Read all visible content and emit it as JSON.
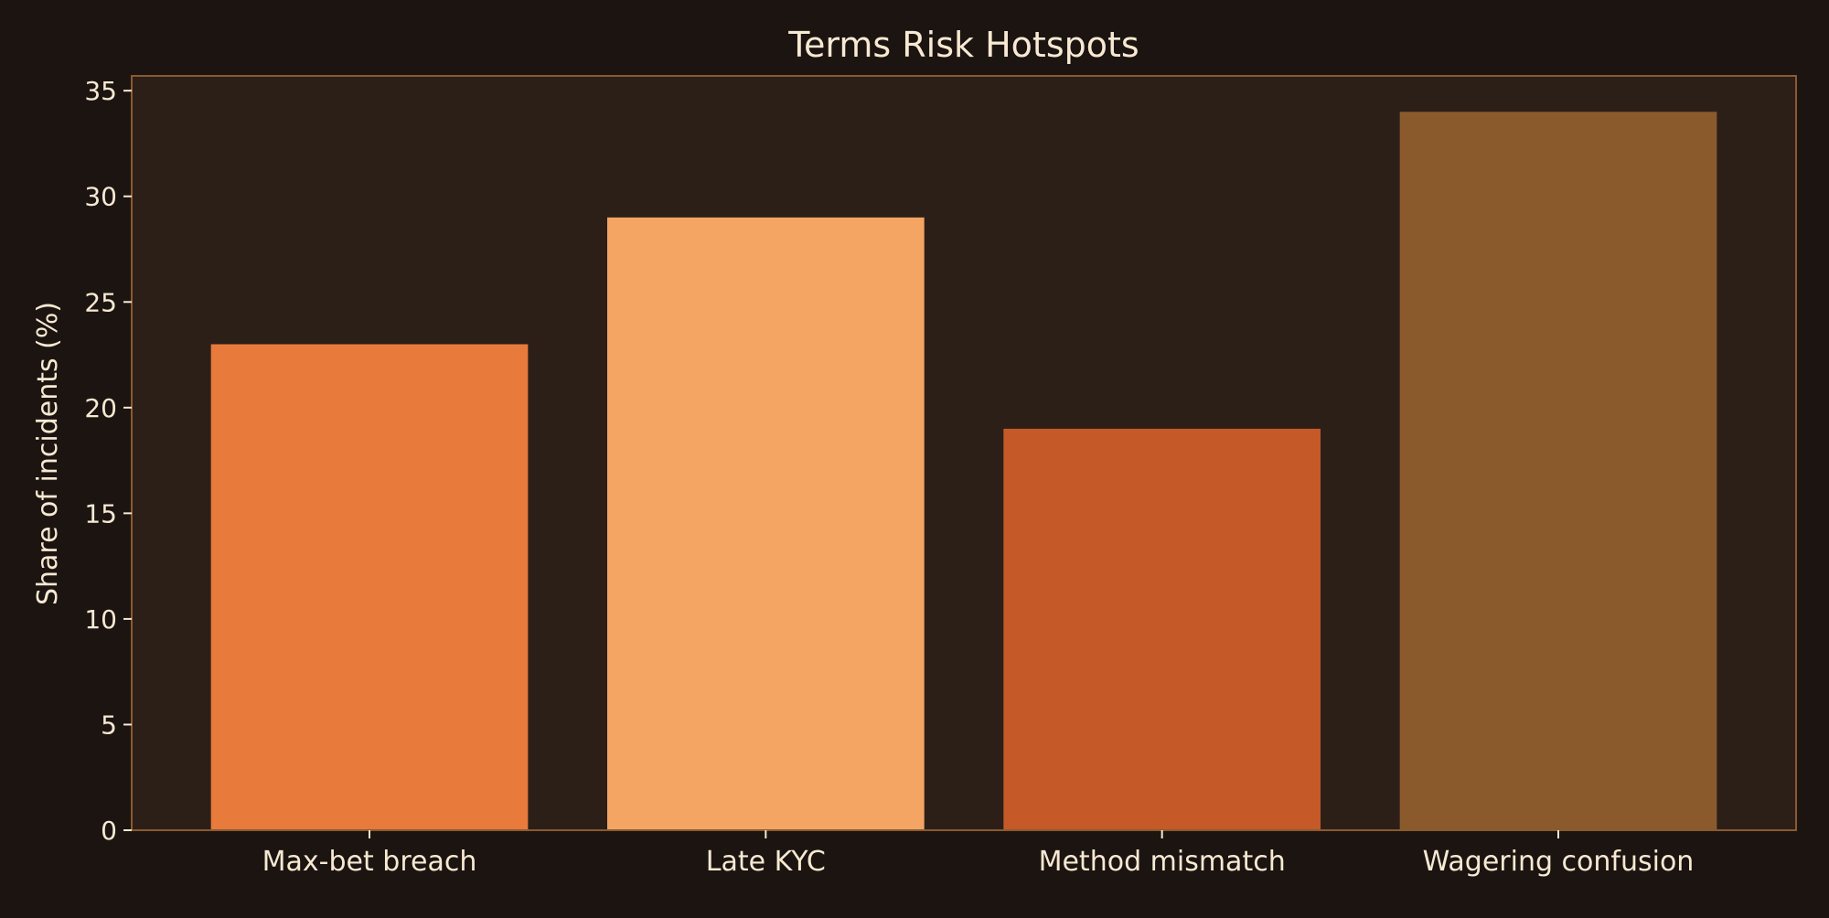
{
  "chart_data": {
    "type": "bar",
    "title": "Terms Risk Hotspots",
    "xlabel": "",
    "ylabel": "Share of incidents (%)",
    "categories": [
      "Max-bet breach",
      "Late KYC",
      "Method mismatch",
      "Wagering confusion"
    ],
    "values": [
      23,
      29,
      19,
      34
    ],
    "colors": [
      "#e87a3b",
      "#f4a563",
      "#c55a28",
      "#8b5a2c"
    ],
    "ylim": [
      0,
      35.7
    ],
    "yticks": [
      0,
      5,
      10,
      15,
      20,
      25,
      30,
      35
    ],
    "grid": false,
    "legend": "none"
  },
  "theme": {
    "background": "#1c1411",
    "plot_background": "#2c1f18",
    "spine": "#8a5a30",
    "text": "#f7e9d2"
  }
}
